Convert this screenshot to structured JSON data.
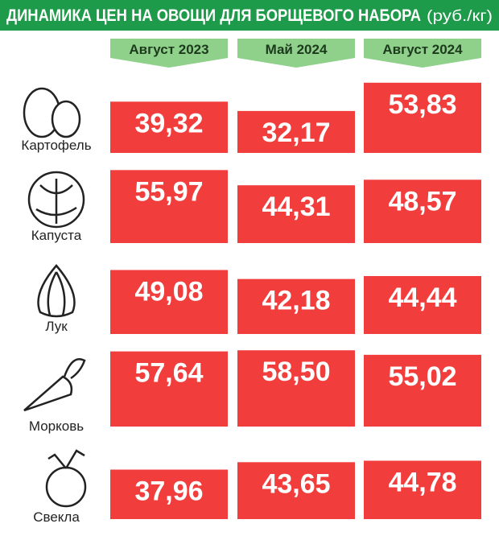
{
  "chart_data": {
    "type": "bar",
    "title": "ДИНАМИКА ЦЕН НА ОВОЩИ ДЛЯ БОРЩЕВОГО НАБОРА",
    "unit": "(руб./кг)",
    "categories": [
      "Картофель",
      "Капуста",
      "Лук",
      "Морковь",
      "Свекла"
    ],
    "series": [
      {
        "name": "Август 2023",
        "color": "#f23d3d",
        "values": [
          39.32,
          55.97,
          49.08,
          57.64,
          37.96
        ],
        "value_labels": [
          "39,32",
          "55,97",
          "49,08",
          "57,64",
          "37,96"
        ]
      },
      {
        "name": "Май 2024",
        "color": "#f23d3d",
        "values": [
          32.17,
          44.31,
          42.18,
          58.5,
          43.65
        ],
        "value_labels": [
          "32,17",
          "44,31",
          "42,18",
          "58,50",
          "43,65"
        ]
      },
      {
        "name": "Август 2024",
        "color": "#f23d3d",
        "values": [
          53.83,
          48.57,
          44.44,
          55.02,
          44.78
        ],
        "value_labels": [
          "53,83",
          "48,57",
          "44,44",
          "55,02",
          "44,78"
        ]
      }
    ]
  }
}
